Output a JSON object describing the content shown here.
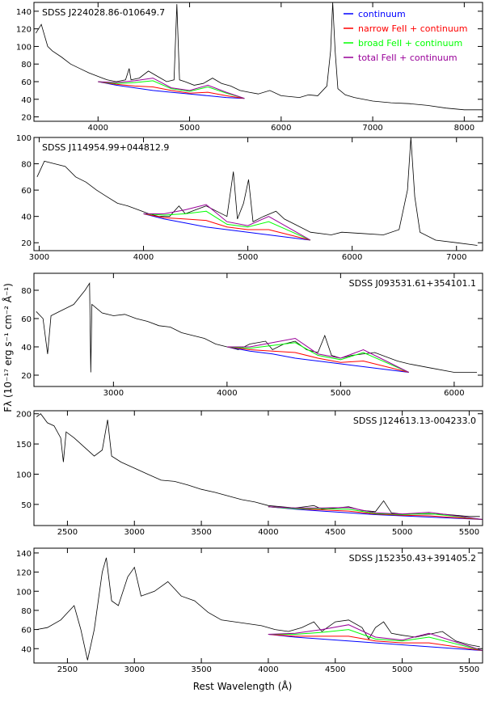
{
  "xlabel": "Rest Wavelength  (Å)",
  "ylabel": "Fλ  (10⁻¹⁷ erg s⁻¹ cm⁻² Å⁻¹)",
  "chart_data": [
    {
      "type": "line",
      "title": "SDSS J224028.86-010649.7",
      "title_position": "left",
      "legend": "upper right",
      "xlim": [
        3300,
        8200
      ],
      "xticks": [
        4000,
        5000,
        6000,
        7000,
        8000
      ],
      "ylim": [
        15,
        150
      ],
      "yticks": [
        20,
        40,
        60,
        80,
        100,
        120,
        140
      ],
      "series": [
        {
          "color": "#000000",
          "x": [
            3320,
            3380,
            3450,
            3500,
            3600,
            3700,
            3800,
            3900,
            4000,
            4100,
            4200,
            4300,
            4340,
            4360,
            4450,
            4550,
            4650,
            4750,
            4830,
            4861,
            4890,
            4950,
            5050,
            5150,
            5250,
            5350,
            5450,
            5550,
            5650,
            5750,
            5876,
            6000,
            6200,
            6300,
            6400,
            6500,
            6540,
            6563,
            6590,
            6620,
            6700,
            6800,
            7000,
            7200,
            7400,
            7600,
            7800,
            8000,
            8200
          ],
          "values": [
            115,
            125,
            100,
            95,
            88,
            80,
            75,
            70,
            66,
            62,
            60,
            62,
            75,
            62,
            64,
            72,
            66,
            60,
            62,
            148,
            62,
            60,
            56,
            58,
            64,
            58,
            55,
            50,
            48,
            46,
            50,
            44,
            42,
            45,
            44,
            55,
            95,
            150,
            95,
            52,
            45,
            42,
            38,
            36,
            35,
            33,
            30,
            28,
            28
          ]
        },
        {
          "name": "continuum",
          "color": "#0000ff",
          "x": [
            4000,
            4200,
            4400,
            4600,
            4800,
            5000,
            5200,
            5400,
            5600
          ],
          "values": [
            60,
            56,
            53,
            50,
            48,
            46,
            44,
            42,
            41
          ]
        },
        {
          "name": "narrow FeII + continuum",
          "color": "#ff0000",
          "x": [
            4000,
            4200,
            4400,
            4600,
            4800,
            5000,
            5200,
            5400,
            5600
          ],
          "values": [
            60,
            57,
            55,
            54,
            50,
            47,
            48,
            44,
            41
          ]
        },
        {
          "name": "broad FeII + continuum",
          "color": "#00ff00",
          "x": [
            4000,
            4200,
            4400,
            4600,
            4800,
            5000,
            5200,
            5400,
            5600
          ],
          "values": [
            60,
            58,
            59,
            61,
            52,
            49,
            54,
            47,
            41
          ]
        },
        {
          "name": "total FeII + continuum",
          "color": "#990099",
          "x": [
            4000,
            4200,
            4400,
            4600,
            4800,
            5000,
            5200,
            5400,
            5600
          ],
          "values": [
            60,
            59,
            61,
            64,
            53,
            50,
            56,
            48,
            41
          ]
        }
      ]
    },
    {
      "type": "line",
      "title": "SDSS J114954.99+044812.9",
      "title_position": "left",
      "xlim": [
        2950,
        7250
      ],
      "xticks": [
        3000,
        4000,
        5000,
        6000,
        7000
      ],
      "ylim": [
        14,
        100
      ],
      "yticks": [
        20,
        40,
        60,
        80,
        100
      ],
      "series": [
        {
          "color": "#000000",
          "x": [
            2980,
            3050,
            3150,
            3250,
            3350,
            3450,
            3550,
            3650,
            3750,
            3850,
            3950,
            4050,
            4150,
            4250,
            4340,
            4400,
            4500,
            4600,
            4700,
            4800,
            4861,
            4900,
            4959,
            5007,
            5050,
            5150,
            5270,
            5350,
            5450,
            5600,
            5800,
            5900,
            6100,
            6300,
            6450,
            6530,
            6563,
            6600,
            6650,
            6800,
            7000,
            7200
          ],
          "values": [
            70,
            82,
            80,
            78,
            70,
            66,
            60,
            55,
            50,
            48,
            45,
            42,
            40,
            40,
            48,
            42,
            45,
            48,
            44,
            40,
            74,
            38,
            50,
            68,
            36,
            40,
            44,
            38,
            34,
            28,
            26,
            28,
            27,
            26,
            30,
            60,
            100,
            55,
            28,
            22,
            20,
            18
          ]
        },
        {
          "color": "#0000ff",
          "x": [
            4000,
            4200,
            4400,
            4600,
            4800,
            5000,
            5200,
            5400,
            5600
          ],
          "values": [
            42,
            38,
            35,
            32,
            30,
            28,
            26,
            24,
            22
          ]
        },
        {
          "color": "#ff0000",
          "x": [
            4000,
            4200,
            4400,
            4600,
            4800,
            5000,
            5200,
            5400,
            5600
          ],
          "values": [
            42,
            39,
            38,
            37,
            32,
            30,
            30,
            26,
            22
          ]
        },
        {
          "color": "#00ff00",
          "x": [
            4000,
            4200,
            4400,
            4600,
            4800,
            5000,
            5200,
            5400,
            5600
          ],
          "values": [
            42,
            41,
            42,
            44,
            34,
            32,
            36,
            29,
            22
          ]
        },
        {
          "color": "#990099",
          "x": [
            4000,
            4200,
            4400,
            4600,
            4800,
            5000,
            5200,
            5400,
            5600
          ],
          "values": [
            42,
            42,
            45,
            49,
            36,
            33,
            40,
            31,
            22
          ]
        }
      ]
    },
    {
      "type": "line",
      "title": "SDSS J093531.61+354101.1",
      "title_position": "right",
      "xlim": [
        2300,
        6250
      ],
      "xticks": [
        3000,
        4000,
        5000,
        6000
      ],
      "ylim": [
        12,
        92
      ],
      "yticks": [
        20,
        40,
        60,
        80
      ],
      "series": [
        {
          "color": "#000000",
          "x": [
            2320,
            2380,
            2420,
            2450,
            2550,
            2650,
            2750,
            2790,
            2800,
            2810,
            2900,
            3000,
            3100,
            3200,
            3300,
            3400,
            3500,
            3600,
            3700,
            3800,
            3900,
            4000,
            4100,
            4200,
            4340,
            4400,
            4500,
            4600,
            4700,
            4800,
            4861,
            4920,
            5000,
            5100,
            5300,
            5500,
            5600,
            5800,
            6000,
            6200
          ],
          "values": [
            65,
            60,
            35,
            62,
            66,
            70,
            80,
            85,
            22,
            70,
            64,
            62,
            63,
            60,
            58,
            55,
            54,
            50,
            48,
            46,
            42,
            40,
            38,
            42,
            44,
            38,
            42,
            44,
            38,
            36,
            48,
            34,
            32,
            34,
            36,
            30,
            28,
            25,
            22,
            22
          ]
        },
        {
          "color": "#0000ff",
          "x": [
            4000,
            4200,
            4400,
            4600,
            4800,
            5000,
            5200,
            5400,
            5600
          ],
          "values": [
            40,
            37,
            35,
            32,
            30,
            28,
            26,
            24,
            22
          ]
        },
        {
          "color": "#ff0000",
          "x": [
            4000,
            4200,
            4400,
            4600,
            4800,
            5000,
            5200,
            5400,
            5600
          ],
          "values": [
            40,
            38,
            37,
            36,
            32,
            29,
            30,
            26,
            22
          ]
        },
        {
          "color": "#00ff00",
          "x": [
            4000,
            4200,
            4400,
            4600,
            4800,
            5000,
            5200,
            5400,
            5600
          ],
          "values": [
            40,
            39,
            41,
            43,
            34,
            31,
            36,
            29,
            22
          ]
        },
        {
          "color": "#990099",
          "x": [
            4000,
            4200,
            4400,
            4600,
            4800,
            5000,
            5200,
            5400,
            5600
          ],
          "values": [
            40,
            40,
            43,
            46,
            35,
            32,
            38,
            30,
            22
          ]
        }
      ]
    },
    {
      "type": "line",
      "title": "SDSS J124613.13-004233.0",
      "title_position": "right",
      "xlim": [
        2250,
        5600
      ],
      "xticks": [
        2500,
        3000,
        3500,
        4000,
        4500,
        5000,
        5500
      ],
      "ylim": [
        15,
        205
      ],
      "yticks": [
        50,
        100,
        150,
        200
      ],
      "series": [
        {
          "color": "#000000",
          "x": [
            2270,
            2300,
            2350,
            2400,
            2450,
            2470,
            2490,
            2550,
            2650,
            2700,
            2760,
            2800,
            2830,
            2900,
            3000,
            3100,
            3200,
            3300,
            3400,
            3500,
            3600,
            3700,
            3800,
            3900,
            4000,
            4100,
            4200,
            4340,
            4400,
            4500,
            4600,
            4700,
            4800,
            4861,
            4920,
            5000,
            5100,
            5300,
            5500,
            5580
          ],
          "values": [
            195,
            200,
            185,
            180,
            160,
            120,
            170,
            160,
            140,
            130,
            140,
            190,
            130,
            120,
            110,
            100,
            90,
            88,
            82,
            75,
            70,
            64,
            58,
            54,
            48,
            46,
            44,
            48,
            42,
            44,
            46,
            40,
            38,
            56,
            36,
            34,
            34,
            34,
            30,
            30
          ]
        },
        {
          "color": "#0000ff",
          "x": [
            4000,
            4200,
            4400,
            4600,
            4800,
            5000,
            5200,
            5400,
            5600
          ],
          "values": [
            46,
            42,
            39,
            36,
            33,
            31,
            29,
            27,
            25
          ]
        },
        {
          "color": "#ff0000",
          "x": [
            4000,
            4200,
            4400,
            4600,
            4800,
            5000,
            5200,
            5400,
            5600
          ],
          "values": [
            46,
            43,
            41,
            39,
            34,
            32,
            31,
            28,
            25
          ]
        },
        {
          "color": "#00ff00",
          "x": [
            4000,
            4200,
            4400,
            4600,
            4800,
            5000,
            5200,
            5400,
            5600
          ],
          "values": [
            46,
            43,
            43,
            42,
            35,
            33,
            35,
            30,
            25
          ]
        },
        {
          "color": "#990099",
          "x": [
            4000,
            4200,
            4400,
            4600,
            4800,
            5000,
            5200,
            5400,
            5600
          ],
          "values": [
            46,
            44,
            44,
            45,
            36,
            34,
            37,
            31,
            25
          ]
        }
      ]
    },
    {
      "type": "line",
      "title": "SDSS J152350.43+391405.2",
      "title_position": "right",
      "xlim": [
        2250,
        5600
      ],
      "xticks": [
        2500,
        3000,
        3500,
        4000,
        4500,
        5000,
        5500
      ],
      "ylim": [
        25,
        145
      ],
      "yticks": [
        40,
        60,
        80,
        100,
        120,
        140
      ],
      "series": [
        {
          "color": "#000000",
          "x": [
            2270,
            2350,
            2450,
            2550,
            2600,
            2650,
            2700,
            2760,
            2790,
            2830,
            2880,
            2950,
            3000,
            3050,
            3150,
            3250,
            3350,
            3450,
            3550,
            3650,
            3750,
            3850,
            3950,
            4050,
            4150,
            4250,
            4340,
            4400,
            4500,
            4600,
            4700,
            4750,
            4800,
            4861,
            4920,
            5000,
            5100,
            5200,
            5300,
            5400,
            5500,
            5580
          ],
          "values": [
            60,
            62,
            70,
            85,
            60,
            28,
            60,
            120,
            135,
            90,
            85,
            115,
            125,
            95,
            100,
            110,
            95,
            90,
            78,
            70,
            68,
            66,
            64,
            60,
            58,
            62,
            68,
            58,
            68,
            70,
            62,
            50,
            62,
            68,
            56,
            54,
            52,
            55,
            58,
            48,
            44,
            42
          ]
        },
        {
          "color": "#0000ff",
          "x": [
            4000,
            4200,
            4400,
            4600,
            4800,
            5000,
            5200,
            5400,
            5600
          ],
          "values": [
            55,
            52,
            50,
            48,
            46,
            44,
            42,
            40,
            38
          ]
        },
        {
          "color": "#ff0000",
          "x": [
            4000,
            4200,
            4400,
            4600,
            4800,
            5000,
            5200,
            5400,
            5600
          ],
          "values": [
            55,
            53,
            53,
            53,
            48,
            46,
            46,
            42,
            38
          ]
        },
        {
          "color": "#00ff00",
          "x": [
            4000,
            4200,
            4400,
            4600,
            4800,
            5000,
            5200,
            5400,
            5600
          ],
          "values": [
            55,
            55,
            57,
            60,
            50,
            48,
            52,
            45,
            38
          ]
        },
        {
          "color": "#990099",
          "x": [
            4000,
            4200,
            4400,
            4600,
            4800,
            5000,
            5200,
            5400,
            5600
          ],
          "values": [
            55,
            56,
            60,
            65,
            52,
            49,
            56,
            47,
            38
          ]
        }
      ]
    }
  ]
}
